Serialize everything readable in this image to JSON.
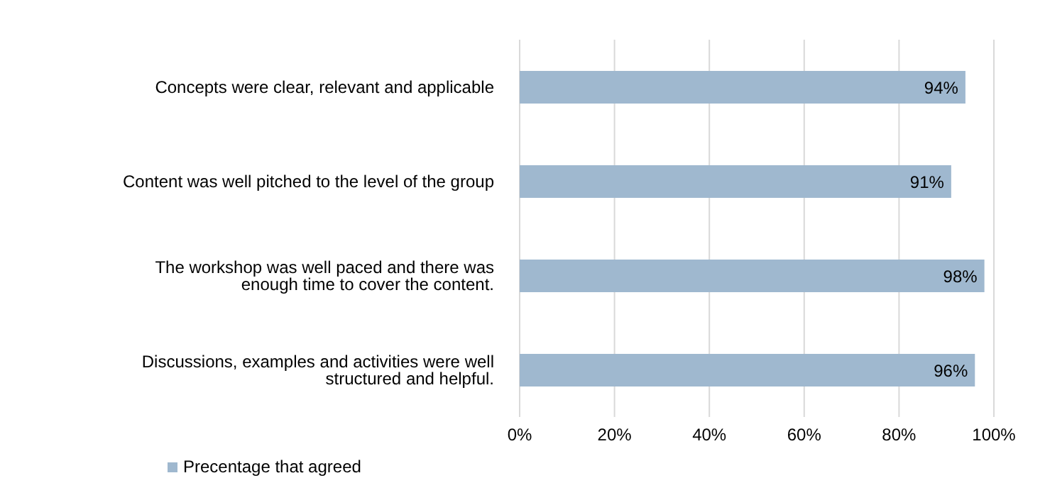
{
  "chart_data": {
    "type": "bar",
    "orientation": "horizontal",
    "categories": [
      "Concepts were clear, relevant and applicable",
      "Content was well pitched to the level of the group",
      "The workshop was well paced and there was enough time to cover the content.",
      "Discussions, examples and activities were well structured and helpful."
    ],
    "series": [
      {
        "name": "Precentage that agreed",
        "color": "#9fb8cf",
        "values": [
          94,
          91,
          98,
          96
        ],
        "value_labels": [
          "94%",
          "91%",
          "98%",
          "96%"
        ]
      }
    ],
    "xlim": [
      0,
      100
    ],
    "xticks": [
      {
        "value": 0,
        "label": "0%"
      },
      {
        "value": 20,
        "label": "20%"
      },
      {
        "value": 40,
        "label": "40%"
      },
      {
        "value": 60,
        "label": "60%"
      },
      {
        "value": 80,
        "label": "80%"
      },
      {
        "value": 100,
        "label": "100%"
      }
    ],
    "grid": "x",
    "legend": "bottom left"
  }
}
